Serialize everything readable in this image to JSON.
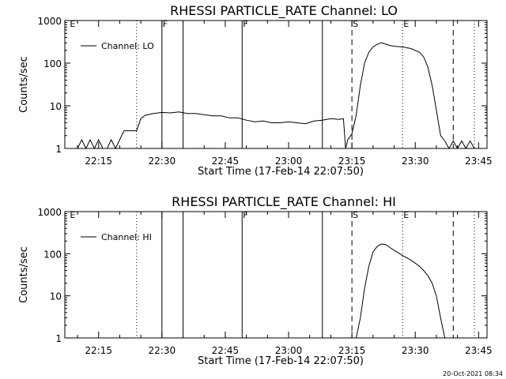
{
  "chart_data": [
    {
      "type": "line",
      "title": "RHESSI PARTICLE_RATE Channel: LO",
      "xlabel": "Start Time (17-Feb-14 22:07:50)",
      "ylabel": "Counts/sec",
      "y_scale": "log",
      "ylim": [
        1,
        1000
      ],
      "xlim": [
        "22:07:50",
        "23:47:00"
      ],
      "x_ticks": [
        "22:15",
        "22:30",
        "22:45",
        "23:00",
        "23:15",
        "23:30",
        "23:45"
      ],
      "y_ticks": [
        "1",
        "10",
        "100",
        "1000"
      ],
      "legend": {
        "position": "top-left",
        "entries": [
          "Channel: LO"
        ]
      },
      "grid": false,
      "series": [
        {
          "name": "Channel: LO",
          "x": [
            "22:08",
            "22:10",
            "22:11",
            "22:12",
            "22:13",
            "22:14",
            "22:15",
            "22:16",
            "22:17",
            "22:18",
            "22:19",
            "22:20",
            "22:21",
            "22:22",
            "22:23",
            "22:24",
            "22:25",
            "22:26",
            "22:28",
            "22:30",
            "22:32",
            "22:34",
            "22:36",
            "22:38",
            "22:40",
            "22:42",
            "22:44",
            "22:46",
            "22:48",
            "22:50",
            "22:52",
            "22:54",
            "22:56",
            "22:58",
            "23:00",
            "23:02",
            "23:04",
            "23:06",
            "23:08",
            "23:10",
            "23:12",
            "23:13",
            "23:13.5",
            "23:14",
            "23:15",
            "23:16",
            "23:17",
            "23:18",
            "23:19",
            "23:20",
            "23:21",
            "23:22",
            "23:23",
            "23:24",
            "23:25",
            "23:27",
            "23:29",
            "23:31",
            "23:32",
            "23:33",
            "23:34",
            "23:35",
            "23:36",
            "23:37",
            "23:38",
            "23:39",
            "23:40",
            "23:41",
            "23:42",
            "23:43",
            "23:44"
          ],
          "values": [
            1,
            1,
            1.6,
            1,
            1.6,
            1,
            1.6,
            1,
            1,
            1.6,
            1,
            1.6,
            2.6,
            2.6,
            2.6,
            2.6,
            5,
            6,
            6.6,
            7,
            6.8,
            7.2,
            6.6,
            6.6,
            6.2,
            5.8,
            5.8,
            5.2,
            5.2,
            4.6,
            4.2,
            4.4,
            4,
            4,
            4.2,
            4,
            3.8,
            4.4,
            4.6,
            5,
            4.8,
            5,
            1,
            1.6,
            2.2,
            6,
            30,
            100,
            180,
            240,
            280,
            300,
            280,
            260,
            250,
            240,
            220,
            180,
            140,
            80,
            30,
            8,
            2,
            1.5,
            1,
            1.5,
            1,
            1.5,
            1,
            1.5,
            1
          ]
        }
      ],
      "annotations": [
        {
          "label": "F",
          "x": "22:30",
          "line": "solid"
        },
        {
          "label": "",
          "x": "22:35",
          "line": "solid"
        },
        {
          "label": "F",
          "x": "22:49",
          "line": "solid"
        },
        {
          "label": "",
          "x": "23:08",
          "line": "solid"
        },
        {
          "label": "",
          "x": "22:24",
          "line": "dotted"
        },
        {
          "label": "S",
          "x": "23:15",
          "line": "dashed"
        },
        {
          "label": "E",
          "x": "23:27",
          "line": "dotted"
        },
        {
          "label": "",
          "x": "23:39",
          "line": "dashed"
        },
        {
          "label": "",
          "x": "23:44",
          "line": "dotted"
        },
        {
          "label": "E",
          "x": "22:08",
          "line": "none"
        }
      ]
    },
    {
      "type": "line",
      "title": "RHESSI PARTICLE_RATE Channel: HI",
      "xlabel": "Start Time (17-Feb-14 22:07:50)",
      "ylabel": "Counts/sec",
      "y_scale": "log",
      "ylim": [
        1,
        1000
      ],
      "xlim": [
        "22:07:50",
        "23:47:00"
      ],
      "x_ticks": [
        "22:15",
        "22:30",
        "22:45",
        "23:00",
        "23:15",
        "23:30",
        "23:45"
      ],
      "y_ticks": [
        "1",
        "10",
        "100",
        "1000"
      ],
      "legend": {
        "position": "top-left",
        "entries": [
          "Channel: HI"
        ]
      },
      "grid": false,
      "series": [
        {
          "name": "Channel: HI",
          "x": [
            "23:16",
            "23:17",
            "23:18",
            "23:19",
            "23:20",
            "23:21",
            "23:22",
            "23:23",
            "23:24",
            "23:25",
            "23:26",
            "23:27",
            "23:28",
            "23:29",
            "23:30",
            "23:31",
            "23:32",
            "23:33",
            "23:34",
            "23:35",
            "23:36",
            "23:37"
          ],
          "values": [
            1,
            3,
            15,
            50,
            110,
            150,
            170,
            165,
            140,
            120,
            105,
            90,
            80,
            70,
            60,
            50,
            40,
            30,
            20,
            10,
            3,
            1
          ]
        }
      ],
      "annotations": [
        {
          "label": "",
          "x": "22:30",
          "line": "solid"
        },
        {
          "label": "",
          "x": "22:35",
          "line": "solid"
        },
        {
          "label": "F",
          "x": "22:49",
          "line": "solid"
        },
        {
          "label": "",
          "x": "23:08",
          "line": "solid"
        },
        {
          "label": "",
          "x": "22:24",
          "line": "dotted"
        },
        {
          "label": "S",
          "x": "23:15",
          "line": "dashed"
        },
        {
          "label": "E",
          "x": "23:27",
          "line": "dotted"
        },
        {
          "label": "",
          "x": "23:39",
          "line": "dashed"
        },
        {
          "label": "",
          "x": "23:44",
          "line": "dotted"
        },
        {
          "label": "E",
          "x": "22:08",
          "line": "none"
        }
      ]
    }
  ],
  "footer_timestamp": "20-Oct-2021 08:34"
}
